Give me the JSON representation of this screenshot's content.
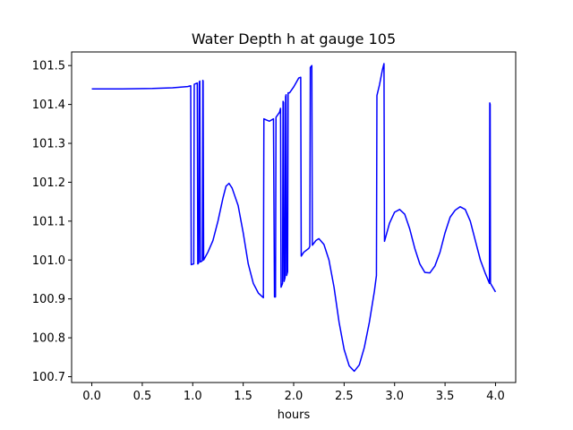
{
  "chart_data": {
    "type": "line",
    "title": "Water Depth h at gauge 105",
    "xlabel": "hours",
    "ylabel": "",
    "xlim": [
      -0.2,
      4.2
    ],
    "ylim": [
      100.685,
      101.535
    ],
    "grid": false,
    "x_ticks": [
      {
        "value": 0.0,
        "label": "0.0"
      },
      {
        "value": 0.5,
        "label": "0.5"
      },
      {
        "value": 1.0,
        "label": "1.0"
      },
      {
        "value": 1.5,
        "label": "1.5"
      },
      {
        "value": 2.0,
        "label": "2.0"
      },
      {
        "value": 2.5,
        "label": "2.5"
      },
      {
        "value": 3.0,
        "label": "3.0"
      },
      {
        "value": 3.5,
        "label": "3.5"
      },
      {
        "value": 4.0,
        "label": "4.0"
      }
    ],
    "y_ticks": [
      {
        "value": 100.7,
        "label": "100.7"
      },
      {
        "value": 100.8,
        "label": "100.8"
      },
      {
        "value": 100.9,
        "label": "100.9"
      },
      {
        "value": 101.0,
        "label": "101.0"
      },
      {
        "value": 101.1,
        "label": "101.1"
      },
      {
        "value": 101.2,
        "label": "101.2"
      },
      {
        "value": 101.3,
        "label": "101.3"
      },
      {
        "value": 101.4,
        "label": "101.4"
      },
      {
        "value": 101.5,
        "label": "101.5"
      }
    ],
    "series": [
      {
        "color": "#0000ff",
        "points": [
          [
            0.0,
            101.44
          ],
          [
            0.3,
            101.44
          ],
          [
            0.6,
            101.441
          ],
          [
            0.8,
            101.443
          ],
          [
            0.95,
            101.446
          ],
          [
            0.98,
            101.448
          ],
          [
            0.985,
            100.988
          ],
          [
            1.01,
            100.99
          ],
          [
            1.015,
            101.452
          ],
          [
            1.045,
            101.455
          ],
          [
            1.05,
            100.99
          ],
          [
            1.06,
            100.993
          ],
          [
            1.065,
            101.458
          ],
          [
            1.07,
            101.46
          ],
          [
            1.075,
            100.995
          ],
          [
            1.095,
            100.998
          ],
          [
            1.1,
            101.462
          ],
          [
            1.103,
            101.46
          ],
          [
            1.108,
            101.0
          ],
          [
            1.15,
            101.02
          ],
          [
            1.2,
            101.05
          ],
          [
            1.25,
            101.1
          ],
          [
            1.3,
            101.16
          ],
          [
            1.33,
            101.19
          ],
          [
            1.36,
            101.197
          ],
          [
            1.39,
            101.185
          ],
          [
            1.45,
            101.14
          ],
          [
            1.5,
            101.07
          ],
          [
            1.55,
            100.99
          ],
          [
            1.6,
            100.94
          ],
          [
            1.65,
            100.915
          ],
          [
            1.7,
            100.903
          ],
          [
            1.705,
            101.363
          ],
          [
            1.73,
            101.36
          ],
          [
            1.76,
            101.357
          ],
          [
            1.8,
            101.363
          ],
          [
            1.81,
            100.905
          ],
          [
            1.82,
            100.905
          ],
          [
            1.825,
            101.367
          ],
          [
            1.86,
            101.38
          ],
          [
            1.87,
            101.39
          ],
          [
            1.875,
            100.93
          ],
          [
            1.89,
            100.94
          ],
          [
            1.895,
            101.408
          ],
          [
            1.9,
            101.405
          ],
          [
            1.905,
            100.945
          ],
          [
            1.915,
            100.955
          ],
          [
            1.92,
            101.42
          ],
          [
            1.925,
            101.425
          ],
          [
            1.93,
            100.96
          ],
          [
            1.94,
            100.97
          ],
          [
            1.945,
            101.43
          ],
          [
            1.96,
            101.43
          ],
          [
            2.0,
            101.445
          ],
          [
            2.05,
            101.468
          ],
          [
            2.07,
            101.47
          ],
          [
            2.075,
            101.01
          ],
          [
            2.1,
            101.02
          ],
          [
            2.15,
            101.03
          ],
          [
            2.16,
            101.035
          ],
          [
            2.165,
            101.495
          ],
          [
            2.18,
            101.5
          ],
          [
            2.185,
            101.038
          ],
          [
            2.22,
            101.05
          ],
          [
            2.25,
            101.055
          ],
          [
            2.3,
            101.04
          ],
          [
            2.35,
            101.0
          ],
          [
            2.4,
            100.93
          ],
          [
            2.45,
            100.84
          ],
          [
            2.5,
            100.77
          ],
          [
            2.55,
            100.728
          ],
          [
            2.6,
            100.714
          ],
          [
            2.65,
            100.73
          ],
          [
            2.7,
            100.775
          ],
          [
            2.75,
            100.84
          ],
          [
            2.8,
            100.92
          ],
          [
            2.82,
            100.96
          ],
          [
            2.825,
            101.423
          ],
          [
            2.85,
            101.45
          ],
          [
            2.88,
            101.49
          ],
          [
            2.895,
            101.505
          ],
          [
            2.9,
            101.048
          ],
          [
            2.95,
            101.095
          ],
          [
            3.0,
            101.123
          ],
          [
            3.05,
            101.13
          ],
          [
            3.1,
            101.118
          ],
          [
            3.15,
            101.08
          ],
          [
            3.2,
            101.03
          ],
          [
            3.25,
            100.99
          ],
          [
            3.3,
            100.968
          ],
          [
            3.35,
            100.967
          ],
          [
            3.4,
            100.985
          ],
          [
            3.45,
            101.02
          ],
          [
            3.5,
            101.07
          ],
          [
            3.55,
            101.11
          ],
          [
            3.6,
            101.128
          ],
          [
            3.65,
            101.137
          ],
          [
            3.7,
            101.13
          ],
          [
            3.75,
            101.1
          ],
          [
            3.8,
            101.05
          ],
          [
            3.85,
            101.0
          ],
          [
            3.9,
            100.965
          ],
          [
            3.94,
            100.94
          ],
          [
            3.943,
            101.404
          ],
          [
            3.947,
            101.4
          ],
          [
            3.95,
            100.94
          ],
          [
            4.0,
            100.918
          ]
        ]
      }
    ]
  }
}
